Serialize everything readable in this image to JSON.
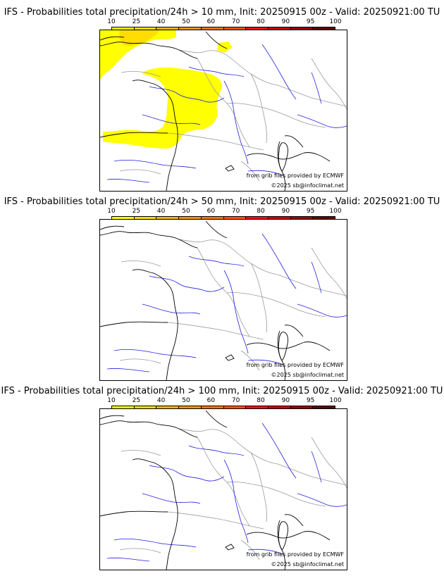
{
  "colors": {
    "scale": [
      "#ffff00",
      "#ffdd00",
      "#f6b21b",
      "#f39418",
      "#f5760f",
      "#ff5500",
      "#ee1111",
      "#cc0000",
      "#990000",
      "#660000"
    ],
    "coast": "#000000",
    "borders": "#9a9a9a",
    "rivers": "#2222dd"
  },
  "colorbar": {
    "ticks": [
      "10",
      "25",
      "40",
      "50",
      "60",
      "70",
      "80",
      "90",
      "95",
      "100"
    ]
  },
  "panels": [
    {
      "title": "IFS - Probabilities total precipitation/24h > 10 mm, Init: 20250915 00z - Valid: 20250921:00 TU",
      "has_precip": true
    },
    {
      "title": "IFS - Probabilities total precipitation/24h > 50 mm, Init: 20250915 00z - Valid: 20250921:00 TU",
      "has_precip": false
    },
    {
      "title": "IFS - Probabilities total precipitation/24h > 100 mm, Init: 20250915 00z - Valid: 20250921:00 TU",
      "has_precip": false
    }
  ],
  "attribution": {
    "source": "from grib files provided by ECMWF",
    "copyright": "©2025 sb@infoclimat.net"
  }
}
